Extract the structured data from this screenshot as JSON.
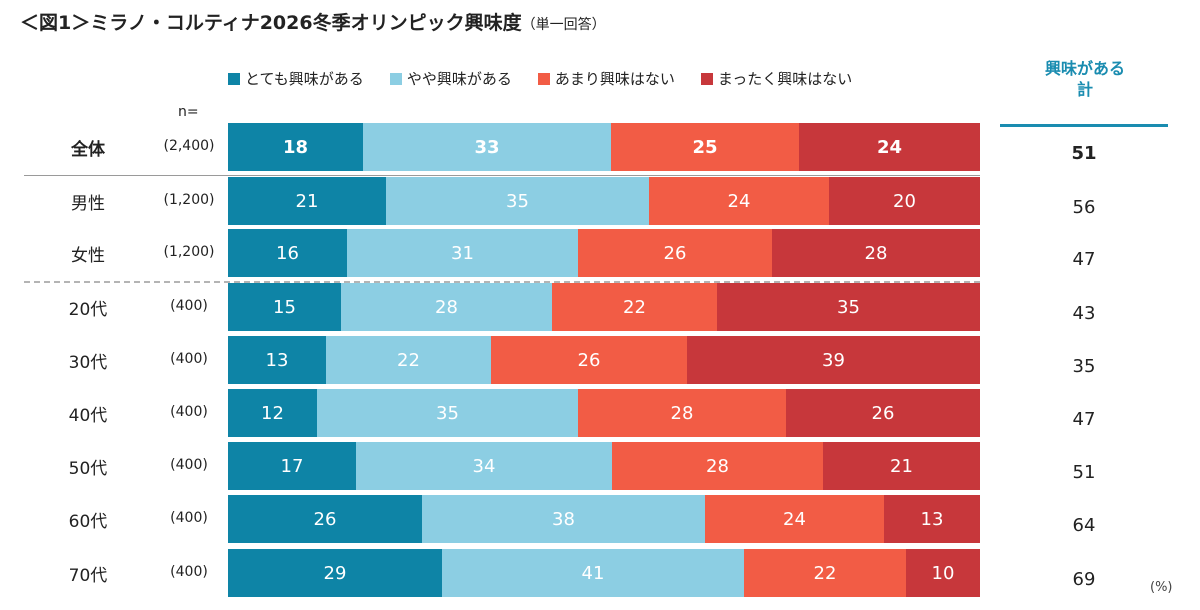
{
  "title": {
    "main": "＜図1＞ミラノ・コルティナ2026冬季オリンピック興味度",
    "note": "（単一回答）"
  },
  "n_label": "n=",
  "interest_header": {
    "line1": "興味がある",
    "line2": "計"
  },
  "unit": "(%)",
  "colors": [
    "#0e84a6",
    "#8ccee3",
    "#f25c45",
    "#c7373b"
  ],
  "chart_data": {
    "type": "bar",
    "orientation": "horizontal",
    "stacked": true,
    "title": "＜図1＞ミラノ・コルティナ2026冬季オリンピック興味度（単一回答）",
    "xlabel": "",
    "ylabel": "",
    "xlim": [
      0,
      100
    ],
    "unit": "(%)",
    "categories": [
      "全体",
      "男性",
      "女性",
      "20代",
      "30代",
      "40代",
      "50代",
      "60代",
      "70代"
    ],
    "sample_sizes": [
      "(2,400)",
      "(1,200)",
      "(1,200)",
      "(400)",
      "(400)",
      "(400)",
      "(400)",
      "(400)",
      "(400)"
    ],
    "series": [
      {
        "name": "とても興味がある",
        "values": [
          18,
          21,
          16,
          15,
          13,
          12,
          17,
          26,
          29
        ]
      },
      {
        "name": "やや興味がある",
        "values": [
          33,
          35,
          31,
          28,
          22,
          35,
          34,
          38,
          41
        ]
      },
      {
        "name": "あまり興味はない",
        "values": [
          25,
          24,
          26,
          22,
          26,
          28,
          28,
          24,
          22
        ]
      },
      {
        "name": "まったく興味はない",
        "values": [
          24,
          20,
          28,
          35,
          39,
          26,
          21,
          13,
          10
        ]
      }
    ],
    "interest_total_label": "興味がある計",
    "interest_totals": [
      51,
      56,
      47,
      43,
      35,
      47,
      51,
      64,
      69
    ]
  }
}
